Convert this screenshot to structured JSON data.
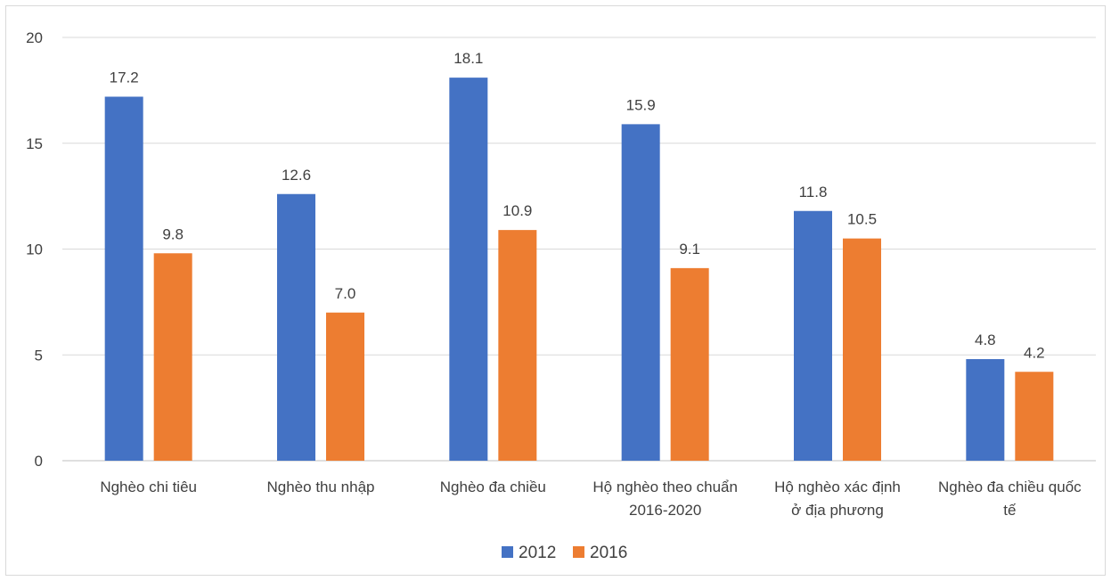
{
  "chart_data": {
    "type": "bar",
    "title": "",
    "xlabel": "",
    "ylabel": "",
    "ylim": [
      0,
      20
    ],
    "yticks": [
      0,
      5,
      10,
      15,
      20
    ],
    "grid": true,
    "legend_position": "bottom-center",
    "categories": [
      [
        "Nghèo chi tiêu"
      ],
      [
        "Nghèo thu nhập"
      ],
      [
        "Nghèo đa chiều"
      ],
      [
        "Hộ nghèo theo chuẩn",
        "2016-2020"
      ],
      [
        "Hộ nghèo xác định",
        "ở địa phương"
      ],
      [
        "Nghèo đa chiều quốc",
        "tế"
      ]
    ],
    "series": [
      {
        "name": "2012",
        "color": "#4472C4",
        "values": [
          17.2,
          12.6,
          18.1,
          15.9,
          11.8,
          4.8
        ],
        "labels": [
          "17.2",
          "12.6",
          "18.1",
          "15.9",
          "11.8",
          "4.8"
        ]
      },
      {
        "name": "2016",
        "color": "#ED7D31",
        "values": [
          9.8,
          7.0,
          10.9,
          9.1,
          10.5,
          4.2
        ],
        "labels": [
          "9.8",
          "7.0",
          "10.9",
          "9.1",
          "10.5",
          "4.2"
        ]
      }
    ]
  }
}
